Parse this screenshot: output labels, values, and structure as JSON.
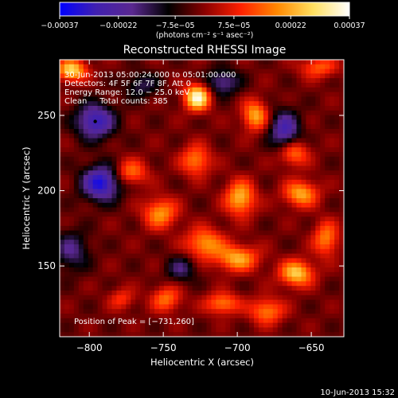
{
  "chart_data": {
    "type": "heatmap",
    "title": "Reconstructed RHESSI Image",
    "xlabel": "Heliocentric X (arcsec)",
    "ylabel": "Heliocentric Y (arcsec)",
    "xlim": [
      -820,
      -628
    ],
    "ylim": [
      103,
      287
    ],
    "x_ticks": [
      -800,
      -750,
      -700,
      -650
    ],
    "x_tick_labels": [
      "−800",
      "−750",
      "−700",
      "−650"
    ],
    "y_ticks": [
      150,
      200,
      250
    ],
    "y_tick_labels": [
      "150",
      "200",
      "250"
    ],
    "colorbar": {
      "range": [
        -0.00037,
        0.00037
      ],
      "ticks": [
        -0.00037,
        -0.00022,
        -7.5e-05,
        7.5e-05,
        0.00022,
        0.00037
      ],
      "tick_labels": [
        "−0.00037",
        "−0.00022",
        "−7.5e−05",
        "7.5e−05",
        "0.00022",
        "0.00037"
      ],
      "unit_label": "(photons cm⁻² s⁻¹ asec⁻²)",
      "colors": [
        "#0000ff",
        "#4020b0",
        "#5a2890",
        "#000000",
        "#8a0000",
        "#ff2000",
        "#ff8800",
        "#ffe060",
        "#ffffff"
      ]
    },
    "annotations": [
      "30-Jun-2013 05:00:24.000 to 05:01:00.000",
      "Detectors: 4F 5F 6F 7F 8F, Att 0",
      "Energy Range: 12.0 − 25.0 keV",
      "Clean     Total counts: 385"
    ],
    "peak_label": "Position of Peak = [−731,260]",
    "peak": [
      -731,
      260
    ],
    "min_marker": [
      -796,
      246
    ],
    "blobs": [
      {
        "x": -727,
        "y": 262,
        "sx": 6,
        "sy": 6,
        "v": 0.00037
      },
      {
        "x": -812,
        "y": 280,
        "sx": 7,
        "sy": 5,
        "v": 0.0003
      },
      {
        "x": -772,
        "y": 212,
        "sx": 8,
        "sy": 6,
        "v": 0.00018
      },
      {
        "x": -752,
        "y": 185,
        "sx": 8,
        "sy": 7,
        "v": 0.00022
      },
      {
        "x": -722,
        "y": 165,
        "sx": 9,
        "sy": 7,
        "v": 0.00022
      },
      {
        "x": -728,
        "y": 220,
        "sx": 7,
        "sy": 7,
        "v": 0.0002
      },
      {
        "x": -698,
        "y": 195,
        "sx": 7,
        "sy": 8,
        "v": 0.00026
      },
      {
        "x": -688,
        "y": 250,
        "sx": 6,
        "sy": 7,
        "v": 0.00024
      },
      {
        "x": -662,
        "y": 225,
        "sx": 7,
        "sy": 6,
        "v": 0.0002
      },
      {
        "x": -657,
        "y": 198,
        "sx": 8,
        "sy": 6,
        "v": 0.00024
      },
      {
        "x": -700,
        "y": 155,
        "sx": 10,
        "sy": 6,
        "v": 0.00024
      },
      {
        "x": -660,
        "y": 145,
        "sx": 8,
        "sy": 6,
        "v": 0.00028
      },
      {
        "x": -680,
        "y": 120,
        "sx": 8,
        "sy": 6,
        "v": 0.0002
      },
      {
        "x": -748,
        "y": 128,
        "sx": 7,
        "sy": 6,
        "v": 0.00018
      },
      {
        "x": -778,
        "y": 128,
        "sx": 6,
        "sy": 5,
        "v": 0.00012
      },
      {
        "x": -645,
        "y": 282,
        "sx": 9,
        "sy": 5,
        "v": 0.00016
      },
      {
        "x": -640,
        "y": 168,
        "sx": 6,
        "sy": 8,
        "v": 0.0002
      },
      {
        "x": -710,
        "y": 125,
        "sx": 8,
        "sy": 5,
        "v": 0.0002
      },
      {
        "x": -796,
        "y": 246,
        "sx": 9,
        "sy": 8,
        "v": -0.00028
      },
      {
        "x": -792,
        "y": 205,
        "sx": 9,
        "sy": 8,
        "v": -0.00032
      },
      {
        "x": -668,
        "y": 240,
        "sx": 7,
        "sy": 9,
        "v": -0.00024
      },
      {
        "x": -710,
        "y": 272,
        "sx": 8,
        "sy": 6,
        "v": -0.00018
      },
      {
        "x": -812,
        "y": 160,
        "sx": 8,
        "sy": 9,
        "v": -0.00016
      },
      {
        "x": -738,
        "y": 148,
        "sx": 7,
        "sy": 6,
        "v": -0.00014
      },
      {
        "x": -765,
        "y": 270,
        "sx": 8,
        "sy": 6,
        "v": -0.00012
      }
    ]
  },
  "footer_date": "10-Jun-2013 15:32"
}
